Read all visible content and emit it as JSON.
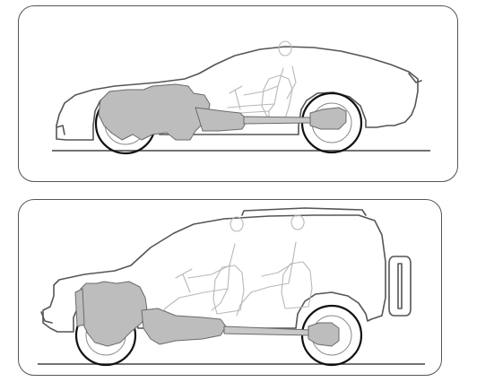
{
  "figure": {
    "panels": [
      {
        "id": "sports-car",
        "icon": "sports-car-drivetrain-cutaway"
      },
      {
        "id": "suv",
        "icon": "suv-drivetrain-cutaway"
      }
    ],
    "colors": {
      "outline": "#555555",
      "mechanical_fill": "#bdbdbd",
      "occupant_outline": "#b8b8b8",
      "tyre": "#111111",
      "ground": "#444444"
    }
  }
}
